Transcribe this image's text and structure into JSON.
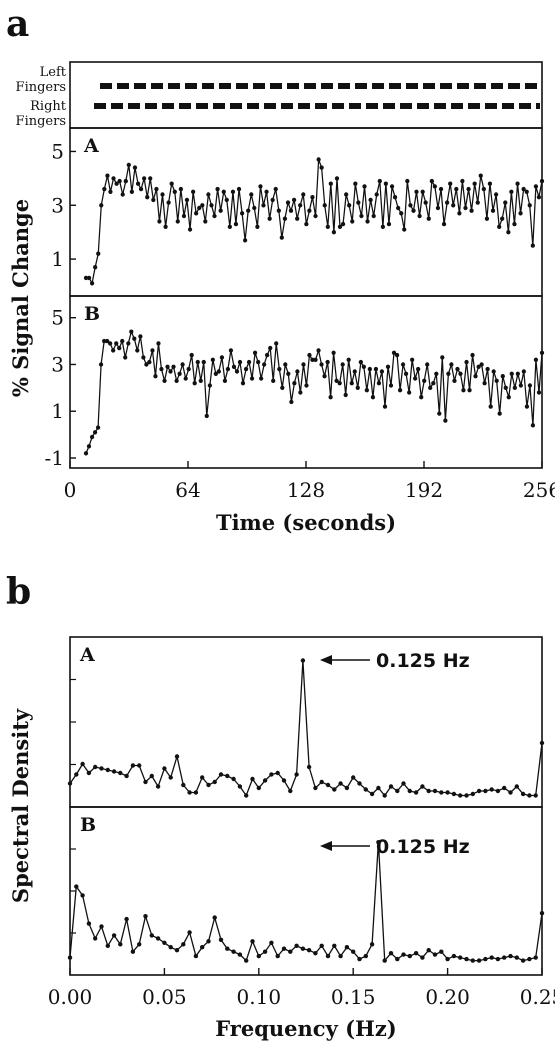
{
  "chart_data": [
    {
      "type": "line",
      "panel_label": "a",
      "xlabel": "Time (seconds)",
      "ylabel": "% Signal Change",
      "xlim": [
        0,
        256
      ],
      "x_ticks": [
        "0",
        "64",
        "128",
        "192",
        "256"
      ],
      "stimulus": {
        "left_label": "Left Fingers",
        "right_label": "Right Fingers"
      },
      "subplots": [
        {
          "label": "A",
          "ylim": [
            0,
            5.5
          ],
          "y_ticks": [
            "5",
            "3",
            "1"
          ],
          "series": [
            {
              "values": [
                0.3,
                0.3,
                0.1,
                0.7,
                1.2,
                3.0,
                3.6,
                4.1,
                3.5,
                4.0,
                3.8,
                3.9,
                3.4,
                3.9,
                4.5,
                3.5,
                4.4,
                3.8,
                3.6,
                4.0,
                3.3,
                4.0,
                3.2,
                3.6,
                2.4,
                3.4,
                2.2,
                3.1,
                3.8,
                3.5,
                2.4,
                3.6,
                2.6,
                3.2,
                2.1,
                3.5,
                2.7,
                2.9,
                3.0,
                2.4,
                3.4,
                3.0,
                2.6,
                3.6,
                2.8,
                3.5,
                3.2,
                2.2,
                3.5,
                2.3,
                3.6,
                2.7,
                1.7,
                2.8,
                3.4,
                2.9,
                2.2,
                3.7,
                3.0,
                3.5,
                2.5,
                3.2,
                3.6,
                2.8,
                1.8,
                2.5,
                3.1,
                2.8,
                3.2,
                2.5,
                3.0,
                3.4,
                2.3,
                2.8,
                3.3,
                2.6,
                4.7,
                4.4,
                3.0,
                2.2,
                3.8,
                2.0,
                4.0,
                2.2,
                2.3,
                3.4,
                3.0,
                2.4,
                3.8,
                3.1,
                2.6,
                3.7,
                2.4,
                3.2,
                2.6,
                3.4,
                3.9,
                2.2,
                3.8,
                2.3,
                3.7,
                3.3,
                2.9,
                2.7,
                2.1,
                3.9,
                3.0,
                2.8,
                3.5,
                2.6,
                3.5,
                3.1,
                2.5,
                3.9,
                3.7,
                2.9,
                3.6,
                2.3,
                3.1,
                3.8,
                3.0,
                3.6,
                2.7,
                3.9,
                2.9,
                3.6,
                2.8,
                3.8,
                3.1,
                4.1,
                3.6,
                2.5,
                3.8,
                2.8,
                3.4,
                2.2,
                2.5,
                3.1,
                2.0,
                3.5,
                2.3,
                3.8,
                2.7,
                3.6,
                3.5,
                3.0,
                1.5,
                3.7,
                3.3,
                3.9
              ]
            }
          ]
        },
        {
          "label": "B",
          "ylim": [
            -1,
            5.5
          ],
          "y_ticks": [
            "5",
            "3",
            "1",
            "-1"
          ],
          "series": [
            {
              "values": [
                -0.8,
                -0.5,
                -0.1,
                0.1,
                0.3,
                3.0,
                4.0,
                4.0,
                3.9,
                3.6,
                3.9,
                3.7,
                4.0,
                3.3,
                3.9,
                4.4,
                4.1,
                3.6,
                4.2,
                3.3,
                3.0,
                3.1,
                3.6,
                2.5,
                3.9,
                2.8,
                2.3,
                2.9,
                2.7,
                2.9,
                2.3,
                2.6,
                3.0,
                2.4,
                2.8,
                3.4,
                2.2,
                3.1,
                2.3,
                3.1,
                0.8,
                2.1,
                3.2,
                2.6,
                2.7,
                3.3,
                2.3,
                2.8,
                3.6,
                2.9,
                2.7,
                3.1,
                2.2,
                2.8,
                3.1,
                2.4,
                3.5,
                3.1,
                2.4,
                3.0,
                3.4,
                3.7,
                2.3,
                3.9,
                2.8,
                2.0,
                3.0,
                2.6,
                1.4,
                2.2,
                2.7,
                1.8,
                3.0,
                2.1,
                3.4,
                3.2,
                3.2,
                3.6,
                3.0,
                2.5,
                3.1,
                1.6,
                3.5,
                2.3,
                2.2,
                3.0,
                1.7,
                3.2,
                2.2,
                2.7,
                2.0,
                3.1,
                2.9,
                1.9,
                2.8,
                1.6,
                2.8,
                2.2,
                2.7,
                1.2,
                2.9,
                2.1,
                3.5,
                3.4,
                1.9,
                3.0,
                2.6,
                1.8,
                3.2,
                2.4,
                2.8,
                1.6,
                2.3,
                3.0,
                2.0,
                2.2,
                2.6,
                0.9,
                3.3,
                0.6,
                2.6,
                3.0,
                2.3,
                2.8,
                2.6,
                1.9,
                3.1,
                1.9,
                3.4,
                2.5,
                2.9,
                3.0,
                2.2,
                2.8,
                1.2,
                2.7,
                2.3,
                0.9,
                2.5,
                2.0,
                1.6,
                2.6,
                2.0,
                2.6,
                2.1,
                2.7,
                1.2,
                2.1,
                0.4,
                3.2,
                1.8,
                3.5
              ]
            }
          ]
        }
      ]
    },
    {
      "type": "line",
      "panel_label": "b",
      "xlabel": "Frequency (Hz)",
      "ylabel": "Spectral Density",
      "xlim": [
        0,
        0.25
      ],
      "x_ticks": [
        "0.00",
        "0.05",
        "0.10",
        "0.15",
        "0.20",
        "0.25"
      ],
      "subplots": [
        {
          "label": "A",
          "annotation": "0.125 Hz",
          "ylim": [
            0,
            1
          ],
          "series": [
            {
              "values": [
                0.09,
                0.15,
                0.22,
                0.16,
                0.2,
                0.19,
                0.18,
                0.17,
                0.16,
                0.14,
                0.21,
                0.21,
                0.1,
                0.14,
                0.07,
                0.19,
                0.13,
                0.27,
                0.08,
                0.03,
                0.03,
                0.13,
                0.08,
                0.1,
                0.15,
                0.14,
                0.12,
                0.07,
                0.01,
                0.12,
                0.06,
                0.11,
                0.15,
                0.16,
                0.11,
                0.04,
                0.15,
                0.91,
                0.2,
                0.06,
                0.1,
                0.08,
                0.05,
                0.09,
                0.06,
                0.13,
                0.09,
                0.05,
                0.02,
                0.06,
                0.01,
                0.07,
                0.04,
                0.09,
                0.04,
                0.03,
                0.07,
                0.04,
                0.04,
                0.03,
                0.03,
                0.02,
                0.01,
                0.01,
                0.02,
                0.04,
                0.04,
                0.05,
                0.04,
                0.06,
                0.03,
                0.07,
                0.02,
                0.01,
                0.01,
                0.36
              ]
            }
          ]
        },
        {
          "label": "B",
          "annotation": "0.125 Hz",
          "ylim": [
            0,
            1
          ],
          "series": [
            {
              "values": [
                0.05,
                0.53,
                0.47,
                0.28,
                0.18,
                0.26,
                0.13,
                0.2,
                0.14,
                0.31,
                0.09,
                0.14,
                0.33,
                0.2,
                0.18,
                0.15,
                0.12,
                0.1,
                0.14,
                0.22,
                0.06,
                0.12,
                0.16,
                0.32,
                0.17,
                0.11,
                0.09,
                0.07,
                0.03,
                0.16,
                0.06,
                0.09,
                0.15,
                0.06,
                0.11,
                0.09,
                0.13,
                0.11,
                0.1,
                0.08,
                0.13,
                0.06,
                0.13,
                0.06,
                0.12,
                0.09,
                0.04,
                0.06,
                0.14,
                0.83,
                0.03,
                0.08,
                0.04,
                0.07,
                0.06,
                0.08,
                0.05,
                0.1,
                0.07,
                0.09,
                0.04,
                0.06,
                0.05,
                0.04,
                0.03,
                0.03,
                0.04,
                0.05,
                0.04,
                0.05,
                0.06,
                0.05,
                0.03,
                0.04,
                0.05,
                0.35
              ]
            }
          ]
        }
      ]
    }
  ]
}
